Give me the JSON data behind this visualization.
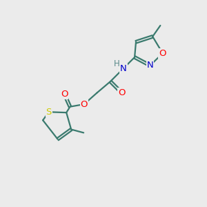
{
  "bg_color": "#ebebeb",
  "bond_color": "#3a7a6e",
  "atom_colors": {
    "O": "#ff0000",
    "N": "#0000cc",
    "S": "#cccc00",
    "H": "#5a8a8a",
    "C": "#3a7a6e"
  },
  "figsize": [
    3.0,
    3.0
  ],
  "dpi": 100
}
